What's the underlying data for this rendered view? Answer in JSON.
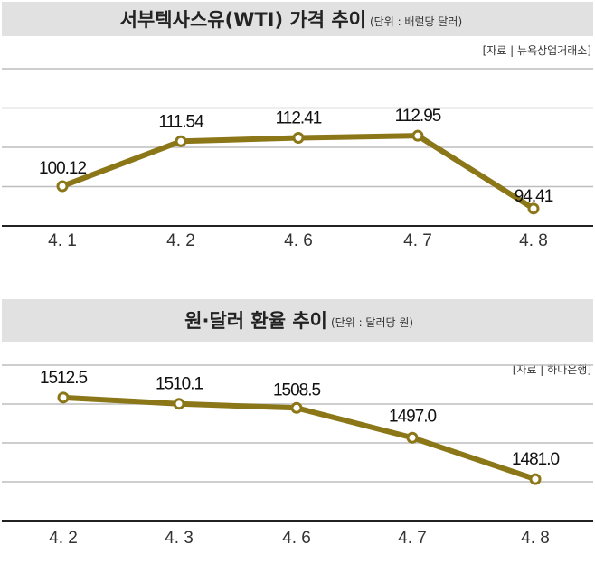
{
  "colors": {
    "line": "#8b7718",
    "grid": "#bdbdbd",
    "titlebar": "#e1e1e1",
    "axis": "#222222"
  },
  "chart_data": [
    {
      "type": "line",
      "title": "서부텍사스유(WTI) 가격 추이",
      "unit": "(단위 : 배럴당 달러)",
      "source": "[자료 | 뉴욕상업거래소]",
      "categories": [
        "4. 1",
        "4. 2",
        "4. 6",
        "4. 7",
        "4. 8"
      ],
      "values": [
        100.12,
        111.54,
        112.41,
        112.95,
        94.41
      ],
      "value_labels": [
        "100.12",
        "111.54",
        "112.41",
        "112.95",
        "94.41"
      ],
      "ylim": [
        90,
        130
      ],
      "grid_step": 10,
      "grid": true
    },
    {
      "type": "line",
      "title": "원·달러 환율 추이",
      "unit": "(단위 : 달러당 원)",
      "source": "[자료 | 하나은행]",
      "categories": [
        "4. 2",
        "4. 3",
        "4. 6",
        "4. 7",
        "4. 8"
      ],
      "values": [
        1512.5,
        1510.1,
        1508.5,
        1497.0,
        1481.0
      ],
      "value_labels": [
        "1512.5",
        "1510.1",
        "1508.5",
        "1497.0",
        "1481.0"
      ],
      "ylim": [
        1465,
        1525
      ],
      "grid_step": 15,
      "grid": true
    }
  ]
}
